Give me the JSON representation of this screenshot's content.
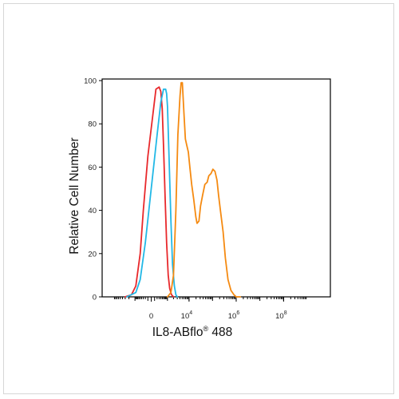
{
  "chart_data": {
    "type": "line",
    "title": "",
    "xlabel": "IL8-ABflo",
    "xlabel_superscript": "®",
    "xlabel_suffix": " 488",
    "ylabel": "Relative Cell Number",
    "ylim": [
      0,
      100
    ],
    "y_ticks": [
      {
        "value": 0,
        "label": "0"
      },
      {
        "value": 20,
        "label": "20"
      },
      {
        "value": 40,
        "label": "40"
      },
      {
        "value": 60,
        "label": "60"
      },
      {
        "value": 80,
        "label": "80"
      },
      {
        "value": 100,
        "label": "100"
      }
    ],
    "x_scale": "biexponential",
    "x_ticks": [
      {
        "value": 0,
        "base": "0",
        "exp": ""
      },
      {
        "value": 10000,
        "base": "10",
        "exp": "4"
      },
      {
        "value": 1000000,
        "base": "10",
        "exp": "6"
      },
      {
        "value": 100000000,
        "base": "10",
        "exp": "8"
      }
    ],
    "series": [
      {
        "color": "#e8282b",
        "x": [
          -3000,
          -1500,
          -900,
          -500,
          -300,
          -100,
          50,
          150,
          300,
          400,
          500,
          600,
          750,
          900,
          1100,
          1300,
          1600,
          2000
        ],
        "y": [
          0,
          1,
          5,
          20,
          40,
          65,
          85,
          96,
          97,
          95,
          87,
          70,
          45,
          25,
          10,
          4,
          1,
          0
        ]
      },
      {
        "color": "#22b8e6",
        "x": [
          -2500,
          -900,
          -500,
          -200,
          0,
          200,
          400,
          600,
          800,
          900,
          1000,
          1200,
          1500,
          1800,
          2200,
          2600,
          3000
        ],
        "y": [
          0,
          2,
          8,
          25,
          50,
          75,
          90,
          96,
          96,
          94,
          88,
          65,
          35,
          15,
          5,
          1,
          0
        ]
      },
      {
        "color": "#f58a11",
        "x": [
          1000,
          1500,
          2000,
          2600,
          3200,
          4000,
          4500,
          5100,
          6000,
          6900,
          8000,
          9300,
          10800,
          13000,
          16000,
          19500,
          22000,
          26500,
          31000,
          38000,
          47500,
          59500,
          70000,
          86000,
          104000,
          127000,
          155000,
          180000,
          215000,
          280000,
          350000,
          450000,
          600000,
          800000,
          1000000,
          1200000,
          1500000
        ],
        "y": [
          0,
          2,
          10,
          40,
          75,
          93,
          99,
          99,
          85,
          73,
          70,
          67,
          60,
          52,
          45,
          37,
          34,
          35,
          42,
          47,
          52,
          53,
          56,
          57,
          59,
          58,
          54,
          47,
          40,
          30,
          18,
          8,
          3,
          1,
          0,
          0,
          0
        ]
      }
    ]
  }
}
